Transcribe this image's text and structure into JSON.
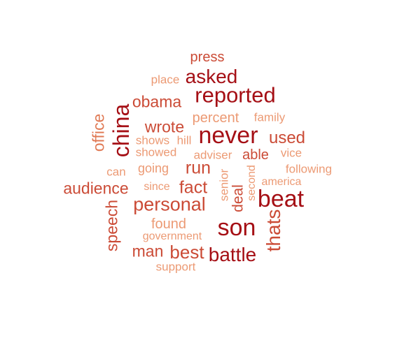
{
  "wordcloud": {
    "words": [
      {
        "text": "press",
        "weight": 2,
        "vertical": false,
        "color": "#cb4b36"
      },
      {
        "text": "asked",
        "weight": 4,
        "vertical": false,
        "color": "#a50f15"
      },
      {
        "text": "place",
        "weight": 1,
        "vertical": false,
        "color": "#ec9a74"
      },
      {
        "text": "reported",
        "weight": 5,
        "vertical": false,
        "color": "#a50f15"
      },
      {
        "text": "obama",
        "weight": 3,
        "vertical": false,
        "color": "#cb4b36"
      },
      {
        "text": "china",
        "weight": 5,
        "vertical": true,
        "color": "#a50f15"
      },
      {
        "text": "percent",
        "weight": 2,
        "vertical": false,
        "color": "#ec9a74"
      },
      {
        "text": "family",
        "weight": 1,
        "vertical": false,
        "color": "#ec9a74"
      },
      {
        "text": "office",
        "weight": 3,
        "vertical": true,
        "color": "#e07a55"
      },
      {
        "text": "wrote",
        "weight": 3,
        "vertical": false,
        "color": "#cb4b36"
      },
      {
        "text": "never",
        "weight": 6,
        "vertical": false,
        "color": "#a50f15"
      },
      {
        "text": "used",
        "weight": 3,
        "vertical": false,
        "color": "#cb4b36"
      },
      {
        "text": "shows",
        "weight": 1,
        "vertical": false,
        "color": "#ec9a74"
      },
      {
        "text": "hill",
        "weight": 1,
        "vertical": false,
        "color": "#ec9a74"
      },
      {
        "text": "showed",
        "weight": 1,
        "vertical": false,
        "color": "#ec9a74"
      },
      {
        "text": "adviser",
        "weight": 1,
        "vertical": false,
        "color": "#ec9a74"
      },
      {
        "text": "able",
        "weight": 2,
        "vertical": false,
        "color": "#cb4b36"
      },
      {
        "text": "vice",
        "weight": 1,
        "vertical": false,
        "color": "#ec9a74"
      },
      {
        "text": "can",
        "weight": 1,
        "vertical": false,
        "color": "#ec9a74"
      },
      {
        "text": "going",
        "weight": 1,
        "vertical": false,
        "color": "#ec9a74"
      },
      {
        "text": "run",
        "weight": 4,
        "vertical": false,
        "color": "#cb4b36"
      },
      {
        "text": "senior",
        "weight": 1,
        "vertical": true,
        "color": "#ec9a74"
      },
      {
        "text": "second",
        "weight": 1,
        "vertical": true,
        "color": "#ec9a74"
      },
      {
        "text": "following",
        "weight": 1,
        "vertical": false,
        "color": "#ec9a74"
      },
      {
        "text": "audience",
        "weight": 3,
        "vertical": false,
        "color": "#cb4b36"
      },
      {
        "text": "since",
        "weight": 1,
        "vertical": false,
        "color": "#ec9a74"
      },
      {
        "text": "fact",
        "weight": 3,
        "vertical": false,
        "color": "#cb4b36"
      },
      {
        "text": "deal",
        "weight": 2,
        "vertical": true,
        "color": "#cb4b36"
      },
      {
        "text": "america",
        "weight": 1,
        "vertical": false,
        "color": "#ec9a74"
      },
      {
        "text": "beat",
        "weight": 6,
        "vertical": false,
        "color": "#a50f15"
      },
      {
        "text": "speech",
        "weight": 2,
        "vertical": true,
        "color": "#cb4b36"
      },
      {
        "text": "personal",
        "weight": 4,
        "vertical": false,
        "color": "#cb4b36"
      },
      {
        "text": "thats",
        "weight": 4,
        "vertical": true,
        "color": "#cb4b36"
      },
      {
        "text": "found",
        "weight": 2,
        "vertical": false,
        "color": "#ec9a74"
      },
      {
        "text": "son",
        "weight": 6,
        "vertical": false,
        "color": "#a50f15"
      },
      {
        "text": "government",
        "weight": 1,
        "vertical": false,
        "color": "#ec9a74"
      },
      {
        "text": "man",
        "weight": 3,
        "vertical": false,
        "color": "#cb4b36"
      },
      {
        "text": "best",
        "weight": 4,
        "vertical": false,
        "color": "#cb4b36"
      },
      {
        "text": "battle",
        "weight": 5,
        "vertical": false,
        "color": "#a50f15"
      },
      {
        "text": "support",
        "weight": 1,
        "vertical": false,
        "color": "#ec9a74"
      }
    ]
  }
}
